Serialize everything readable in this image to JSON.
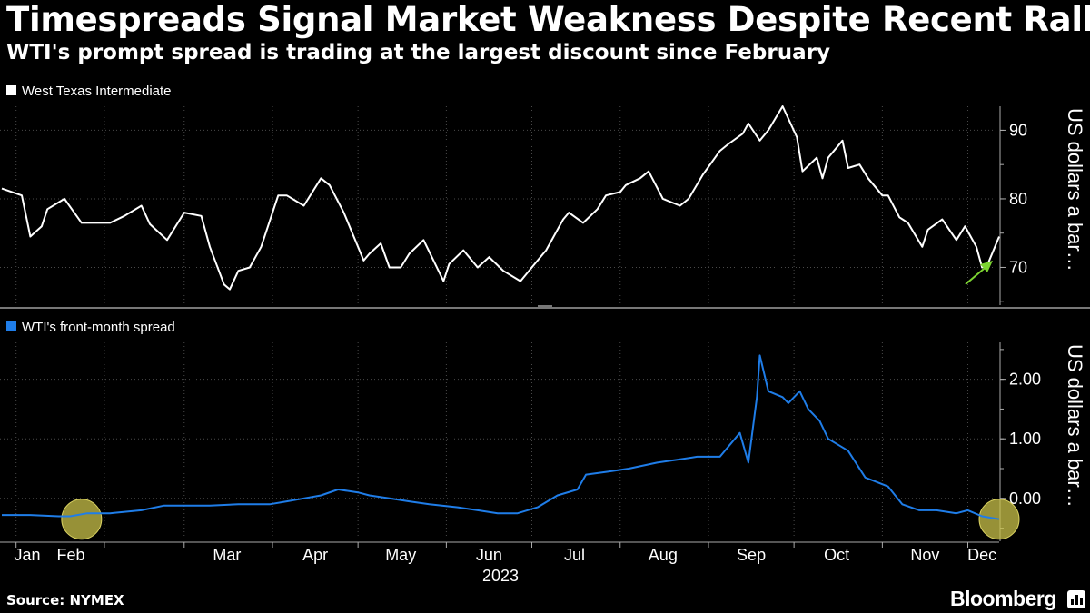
{
  "header": {
    "title": "Timespreads Signal Market Weakness Despite Recent Rally",
    "subtitle": "WTI's prompt spread is trading at the largest discount since February"
  },
  "footer": {
    "source": "Source: NYMEX",
    "brand": "Bloomberg"
  },
  "colors": {
    "background": "#000000",
    "price_line": "#ffffff",
    "spread_line": "#1f7de8",
    "grid": "#444444",
    "arrow": "#7cd331",
    "highlight": "#c9c24a"
  },
  "chart_data": [
    {
      "type": "line",
      "title": "",
      "legend": "West Texas Intermediate",
      "ylabel": "US dollars a bar…",
      "ylim": [
        64.5,
        93.5
      ],
      "yticks": [
        70,
        80,
        90
      ],
      "ytick_labels": [
        "70",
        "80",
        "90"
      ],
      "xaxis": {
        "start": "2022-12-27",
        "end": "2023-12-12"
      },
      "annotations": [
        {
          "type": "arrow",
          "note": "recent rally"
        }
      ],
      "series": [
        {
          "name": "West Texas Intermediate",
          "x": [
            "2022-12-27",
            "2023-01-03",
            "2023-01-06",
            "2023-01-10",
            "2023-01-12",
            "2023-01-18",
            "2023-01-24",
            "2023-01-27",
            "2023-02-03",
            "2023-02-08",
            "2023-02-14",
            "2023-02-17",
            "2023-02-23",
            "2023-03-01",
            "2023-03-07",
            "2023-03-10",
            "2023-03-15",
            "2023-03-17",
            "2023-03-20",
            "2023-03-24",
            "2023-03-28",
            "2023-04-03",
            "2023-04-06",
            "2023-04-12",
            "2023-04-18",
            "2023-04-21",
            "2023-04-26",
            "2023-05-03",
            "2023-05-05",
            "2023-05-09",
            "2023-05-12",
            "2023-05-16",
            "2023-05-19",
            "2023-05-24",
            "2023-05-31",
            "2023-06-02",
            "2023-06-07",
            "2023-06-12",
            "2023-06-16",
            "2023-06-21",
            "2023-06-27",
            "2023-07-03",
            "2023-07-06",
            "2023-07-12",
            "2023-07-14",
            "2023-07-19",
            "2023-07-24",
            "2023-07-27",
            "2023-08-01",
            "2023-08-03",
            "2023-08-08",
            "2023-08-11",
            "2023-08-16",
            "2023-08-22",
            "2023-08-25",
            "2023-08-30",
            "2023-09-05",
            "2023-09-08",
            "2023-09-13",
            "2023-09-15",
            "2023-09-19",
            "2023-09-22",
            "2023-09-27",
            "2023-10-02",
            "2023-10-04",
            "2023-10-09",
            "2023-10-11",
            "2023-10-13",
            "2023-10-18",
            "2023-10-20",
            "2023-10-24",
            "2023-10-27",
            "2023-11-01",
            "2023-11-03",
            "2023-11-07",
            "2023-11-10",
            "2023-11-15",
            "2023-11-17",
            "2023-11-22",
            "2023-11-27",
            "2023-11-30",
            "2023-12-04",
            "2023-12-06",
            "2023-12-08",
            "2023-12-12"
          ],
          "values": [
            81.5,
            80.5,
            74.5,
            76,
            78.5,
            80,
            76.5,
            76.5,
            76.5,
            77.5,
            79,
            76.3,
            74,
            78,
            77.5,
            73,
            67.5,
            66.8,
            69.5,
            70,
            73,
            80.5,
            80.5,
            79,
            83,
            82,
            78,
            71,
            72,
            73.5,
            70,
            70,
            72,
            74,
            68,
            70.5,
            72.5,
            70,
            71.5,
            69.5,
            68,
            71,
            72.5,
            77,
            78,
            76.5,
            78.5,
            80.5,
            81,
            82,
            83,
            84,
            80,
            79,
            80,
            83.5,
            87,
            88,
            89.5,
            91,
            88.5,
            90,
            93.5,
            89,
            84,
            86,
            83,
            86,
            88.5,
            84.5,
            85,
            83,
            80.5,
            80.5,
            77.3,
            76.5,
            73,
            75.5,
            77,
            74,
            76,
            73,
            70,
            70.5,
            74.5
          ]
        }
      ]
    },
    {
      "type": "line",
      "title": "",
      "legend": "WTI's front-month spread",
      "ylabel": "US dollars a bar…",
      "ylim": [
        -0.72,
        2.62
      ],
      "yticks": [
        0,
        1,
        2
      ],
      "ytick_labels": [
        "0.00",
        "1.00",
        "2.00"
      ],
      "xaxis": {
        "start": "2022-12-27",
        "end": "2023-12-12"
      },
      "annotations": [
        {
          "type": "circle",
          "date": "2023-01-24",
          "value": -0.35
        },
        {
          "type": "circle",
          "date": "2023-12-12",
          "value": -0.35
        }
      ],
      "series": [
        {
          "name": "WTI's front-month spread",
          "x": [
            "2022-12-27",
            "2023-01-06",
            "2023-01-16",
            "2023-01-20",
            "2023-01-26",
            "2023-02-03",
            "2023-02-14",
            "2023-02-22",
            "2023-03-01",
            "2023-03-10",
            "2023-03-20",
            "2023-03-31",
            "2023-04-06",
            "2023-04-12",
            "2023-04-18",
            "2023-04-24",
            "2023-05-01",
            "2023-05-05",
            "2023-05-12",
            "2023-05-19",
            "2023-05-26",
            "2023-06-05",
            "2023-06-12",
            "2023-06-19",
            "2023-06-26",
            "2023-07-03",
            "2023-07-10",
            "2023-07-17",
            "2023-07-20",
            "2023-07-28",
            "2023-08-04",
            "2023-08-14",
            "2023-08-21",
            "2023-08-28",
            "2023-09-05",
            "2023-09-12",
            "2023-09-15",
            "2023-09-18",
            "2023-09-19",
            "2023-09-22",
            "2023-09-27",
            "2023-09-29",
            "2023-10-03",
            "2023-10-06",
            "2023-10-10",
            "2023-10-13",
            "2023-10-20",
            "2023-10-26",
            "2023-11-03",
            "2023-11-08",
            "2023-11-14",
            "2023-11-20",
            "2023-11-27",
            "2023-12-01",
            "2023-12-06",
            "2023-12-12"
          ],
          "values": [
            -0.28,
            -0.28,
            -0.3,
            -0.3,
            -0.25,
            -0.25,
            -0.2,
            -0.12,
            -0.12,
            -0.12,
            -0.1,
            -0.1,
            -0.05,
            0.0,
            0.05,
            0.15,
            0.1,
            0.05,
            0.0,
            -0.05,
            -0.1,
            -0.15,
            -0.2,
            -0.25,
            -0.25,
            -0.15,
            0.05,
            0.15,
            0.4,
            0.45,
            0.5,
            0.6,
            0.65,
            0.7,
            0.7,
            1.1,
            0.6,
            1.7,
            2.4,
            1.8,
            1.7,
            1.6,
            1.8,
            1.5,
            1.3,
            1.0,
            0.8,
            0.35,
            0.2,
            -0.1,
            -0.2,
            -0.2,
            -0.25,
            -0.2,
            -0.3,
            -0.35
          ]
        }
      ],
      "xaxis_ticks": [
        "Jan",
        "Feb",
        "Mar",
        "Apr",
        "May",
        "Jun",
        "Jul",
        "Aug",
        "Sep",
        "Oct",
        "Nov",
        "Dec"
      ],
      "xaxis_year": "2023"
    }
  ]
}
